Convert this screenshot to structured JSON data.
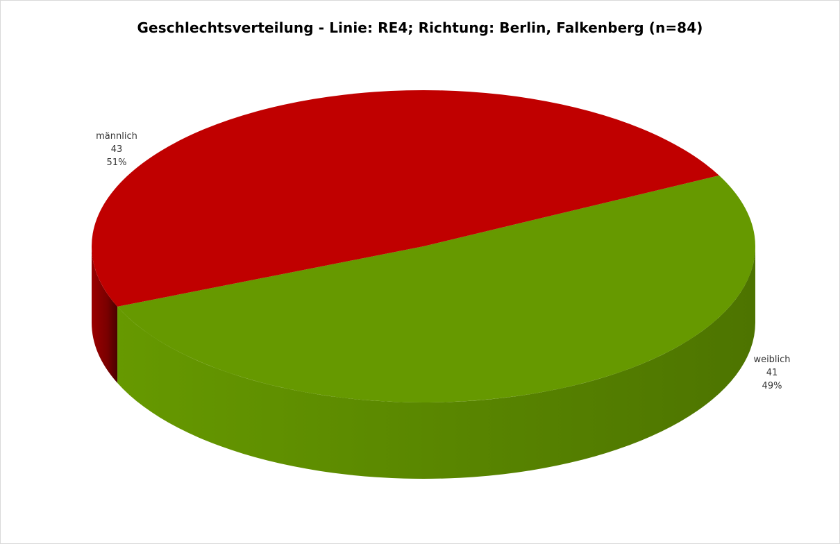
{
  "chart_data": {
    "type": "pie",
    "style": "3d",
    "title": "Geschlechtsverteilung - Linie: RE4; Richtung: Berlin, Falkenberg (n=84)",
    "slices": [
      {
        "label": "männlich",
        "value": 43,
        "percent": "51%",
        "color": "#669900",
        "side_color": "#4d7400"
      },
      {
        "label": "weiblich",
        "value": 41,
        "percent": "49%",
        "color": "#c00000",
        "side_color": "#7a0000"
      }
    ],
    "legend": "none",
    "border_color": "#d9d9d9",
    "background": "#ffffff"
  }
}
